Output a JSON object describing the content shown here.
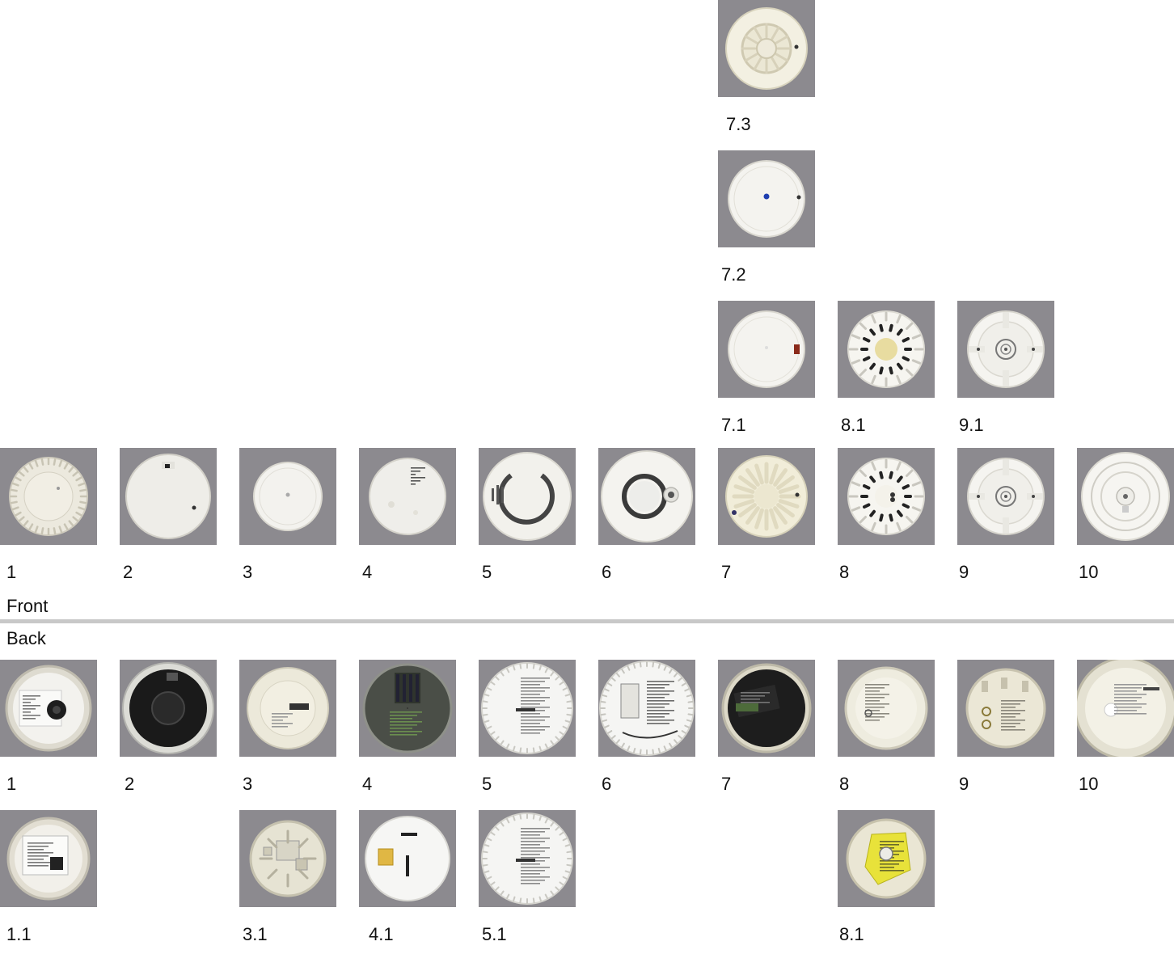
{
  "sections": {
    "front": "Front",
    "back": "Back"
  },
  "front": {
    "top_stack": [
      {
        "label": "7.3",
        "style": "grill-ring"
      },
      {
        "label": "7.2",
        "style": "plain-blue-dot"
      },
      {
        "label": "7.1",
        "style": "plain-red-led"
      },
      {
        "label": "8.1",
        "style": "slots-yellow"
      },
      {
        "label": "9.1",
        "style": "cross-center"
      }
    ],
    "main_row": [
      {
        "label": "1",
        "style": "vented-small"
      },
      {
        "label": "2",
        "style": "plain-notch"
      },
      {
        "label": "3",
        "style": "plain-small"
      },
      {
        "label": "4",
        "style": "plain-grille"
      },
      {
        "label": "5",
        "style": "arc-vents"
      },
      {
        "label": "6",
        "style": "dark-ring"
      },
      {
        "label": "7",
        "style": "fan-slots"
      },
      {
        "label": "8",
        "style": "slots-dark"
      },
      {
        "label": "9",
        "style": "cross-center"
      },
      {
        "label": "10",
        "style": "rings-center"
      }
    ]
  },
  "back": {
    "main_row": [
      {
        "label": "1",
        "style": "back-label-dark-center"
      },
      {
        "label": "2",
        "style": "back-black"
      },
      {
        "label": "3",
        "style": "back-cream-terminal"
      },
      {
        "label": "4",
        "style": "back-dark-board"
      },
      {
        "label": "5",
        "style": "back-white-text"
      },
      {
        "label": "6",
        "style": "back-white-battery"
      },
      {
        "label": "7",
        "style": "back-black-label"
      },
      {
        "label": "8",
        "style": "back-cream-text"
      },
      {
        "label": "9",
        "style": "back-cream-contacts"
      },
      {
        "label": "10",
        "style": "back-large-cream"
      }
    ],
    "second_row": [
      {
        "label": "1.1",
        "style": "back-label-box"
      },
      {
        "label": "3.1",
        "style": "back-mechanics"
      },
      {
        "label": "4.1",
        "style": "back-white-yellow"
      },
      {
        "label": "5.1",
        "style": "back-white-text"
      },
      {
        "label": "8.1",
        "style": "back-yellow-sticker"
      }
    ]
  }
}
